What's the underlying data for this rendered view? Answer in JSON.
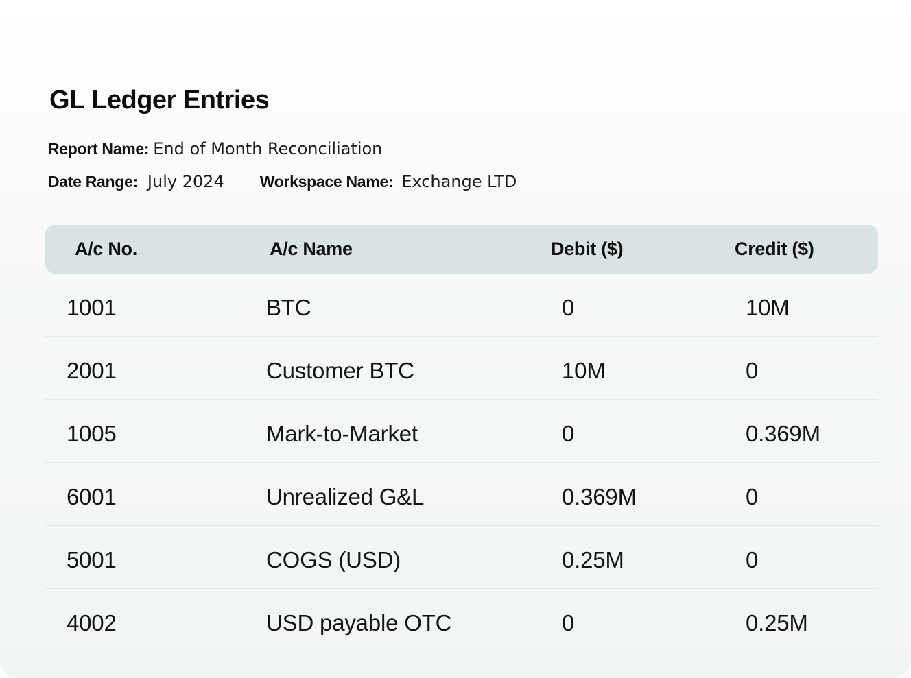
{
  "report": {
    "title": "GL Ledger Entries",
    "report_name_label": "Report Name:",
    "report_name_value": "End of Month Reconciliation",
    "date_range_label": "Date Range:",
    "date_range_value": "July 2024",
    "workspace_label": "Workspace Name:",
    "workspace_value": "Exchange LTD"
  },
  "table": {
    "headers": [
      "A/c No.",
      "A/c Name",
      "Debit ($)",
      "Credit ($)"
    ],
    "rows": [
      [
        "1001",
        "BTC",
        "0",
        "10M"
      ],
      [
        "2001",
        "Customer BTC",
        "10M",
        "0"
      ],
      [
        "1005",
        "Mark-to-Market",
        "0",
        "0.369M"
      ],
      [
        "6001",
        "Unrealized G&L",
        "0.369M",
        "0"
      ],
      [
        "5001",
        "COGS (USD)",
        "0.25M",
        "0"
      ],
      [
        "4002",
        "USD payable OTC",
        "0",
        "0.25M"
      ]
    ]
  },
  "colors": {
    "header_bg": "#d9e3e4",
    "row_divider": "#e3e8e9",
    "text": "#111111"
  }
}
